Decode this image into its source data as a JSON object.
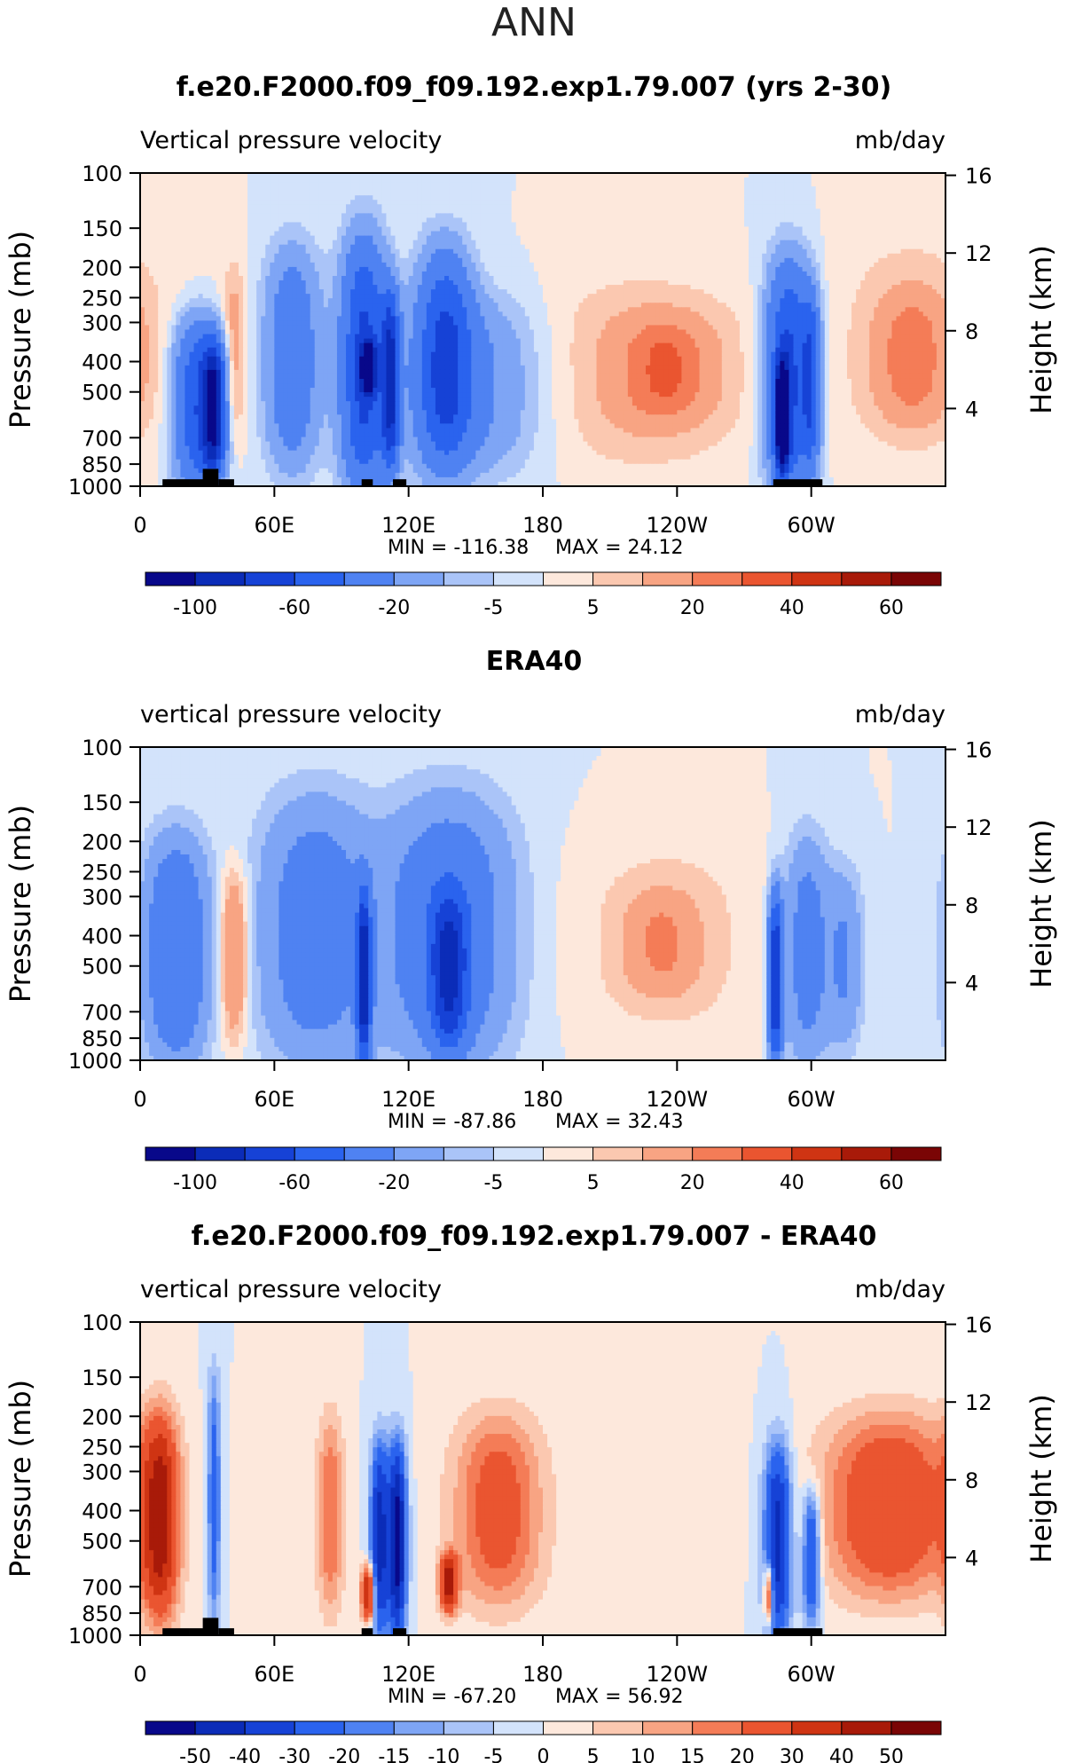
{
  "page_title": "ANN",
  "chart_data": [
    {
      "type": "heatmap",
      "title": "f.e20.F2000.f09_f09.192.exp1.79.007 (yrs 2-30)",
      "variable_label": "Vertical pressure velocity",
      "units_label": "mb/day",
      "ylabel": "Pressure (mb)",
      "y2label": "Height (km)",
      "x_ticks": [
        "0",
        "60E",
        "120E",
        "180",
        "120W",
        "60W"
      ],
      "x_tick_values": [
        0,
        60,
        120,
        180,
        240,
        300
      ],
      "xlim": [
        0,
        360
      ],
      "y_ticks": [
        "100",
        "150",
        "200",
        "250",
        "300",
        "400",
        "500",
        "700",
        "850",
        "1000"
      ],
      "y_tick_values": [
        100,
        150,
        200,
        250,
        300,
        400,
        500,
        700,
        850,
        1000
      ],
      "ylim": [
        1000,
        100
      ],
      "y_log_scale": true,
      "y2_ticks": [
        "16",
        "12",
        "8",
        "4"
      ],
      "y2_tick_values": [
        16,
        12,
        8,
        4
      ],
      "min_label": "MIN = -116.38",
      "max_label": "MAX = 24.12",
      "colorbar_labels": [
        "-100",
        "-60",
        "-20",
        "-5",
        "5",
        "20",
        "40",
        "60"
      ],
      "colorbar_levels": [
        -100,
        -80,
        -60,
        -40,
        -20,
        -10,
        -5,
        0,
        5,
        10,
        20,
        30,
        40,
        50,
        60
      ],
      "colorbar_label_positions": [
        1,
        3,
        5,
        7,
        9,
        11,
        13,
        15
      ],
      "features": [
        {
          "lon": 25,
          "plo": 300,
          "phi": 1000,
          "w": 10,
          "v": -55
        },
        {
          "lon": 33,
          "plo": 350,
          "phi": 900,
          "w": 5,
          "v": -90
        },
        {
          "lon": 42,
          "plo": 200,
          "phi": 700,
          "w": 5,
          "v": 14
        },
        {
          "lon": 68,
          "plo": 180,
          "phi": 850,
          "w": 12,
          "v": -35
        },
        {
          "lon": 100,
          "plo": 170,
          "phi": 1000,
          "w": 10,
          "v": -65
        },
        {
          "lon": 102,
          "plo": 350,
          "phi": 500,
          "w": 3,
          "v": -100
        },
        {
          "lon": 112,
          "plo": 250,
          "phi": 850,
          "w": 4,
          "v": -75
        },
        {
          "lon": 136,
          "plo": 180,
          "phi": 850,
          "w": 12,
          "v": -55
        },
        {
          "lon": 150,
          "plo": 250,
          "phi": 900,
          "w": 30,
          "v": -22
        },
        {
          "lon": 225,
          "plo": 220,
          "phi": 850,
          "w": 48,
          "v": 12
        },
        {
          "lon": 235,
          "plo": 300,
          "phi": 600,
          "w": 18,
          "v": 22
        },
        {
          "lon": 290,
          "plo": 200,
          "phi": 1000,
          "w": 10,
          "v": -65
        },
        {
          "lon": 287,
          "plo": 400,
          "phi": 900,
          "w": 3,
          "v": -110
        },
        {
          "lon": 300,
          "plo": 250,
          "phi": 850,
          "w": 4,
          "v": -45
        },
        {
          "lon": 345,
          "plo": 250,
          "phi": 600,
          "w": 15,
          "v": 20
        },
        {
          "lon": 345,
          "plo": 150,
          "phi": 850,
          "w": 35,
          "v": 8
        }
      ],
      "topography": [
        [
          10,
          22,
          1000,
          950
        ],
        [
          22,
          30,
          1000,
          950
        ],
        [
          28,
          35,
          1000,
          880
        ],
        [
          35,
          42,
          1000,
          950
        ],
        [
          99,
          104,
          1000,
          950
        ],
        [
          113,
          119,
          1000,
          950
        ],
        [
          283,
          305,
          1000,
          950
        ]
      ]
    },
    {
      "type": "heatmap",
      "title": "ERA40",
      "variable_label": "vertical pressure velocity",
      "units_label": "mb/day",
      "ylabel": "Pressure (mb)",
      "y2label": "Height (km)",
      "x_ticks": [
        "0",
        "60E",
        "120E",
        "180",
        "120W",
        "60W"
      ],
      "x_tick_values": [
        0,
        60,
        120,
        180,
        240,
        300
      ],
      "xlim": [
        0,
        360
      ],
      "y_ticks": [
        "100",
        "150",
        "200",
        "250",
        "300",
        "400",
        "500",
        "700",
        "850",
        "1000"
      ],
      "y_tick_values": [
        100,
        150,
        200,
        250,
        300,
        400,
        500,
        700,
        850,
        1000
      ],
      "ylim": [
        1000,
        100
      ],
      "y_log_scale": true,
      "y2_ticks": [
        "16",
        "12",
        "8",
        "4"
      ],
      "y2_tick_values": [
        16,
        12,
        8,
        4
      ],
      "min_label": "MIN = -87.86",
      "max_label": "MAX = 32.43",
      "colorbar_labels": [
        "-100",
        "-60",
        "-20",
        "-5",
        "5",
        "20",
        "40",
        "60"
      ],
      "colorbar_levels": [
        -100,
        -80,
        -60,
        -40,
        -20,
        -10,
        -5,
        0,
        5,
        10,
        20,
        30,
        40,
        50,
        60
      ],
      "colorbar_label_positions": [
        1,
        3,
        5,
        7,
        9,
        11,
        13,
        15
      ],
      "features": [
        {
          "lon": 16,
          "plo": 200,
          "phi": 1000,
          "w": 14,
          "v": -40
        },
        {
          "lon": 42,
          "plo": 250,
          "phi": 850,
          "w": 6,
          "v": 25
        },
        {
          "lon": 78,
          "plo": 150,
          "phi": 1000,
          "w": 25,
          "v": -30
        },
        {
          "lon": 100,
          "plo": 300,
          "phi": 1000,
          "w": 3,
          "v": -85
        },
        {
          "lon": 138,
          "plo": 150,
          "phi": 1000,
          "w": 28,
          "v": -35
        },
        {
          "lon": 138,
          "plo": 300,
          "phi": 900,
          "w": 8,
          "v": -60
        },
        {
          "lon": 235,
          "plo": 200,
          "phi": 850,
          "w": 40,
          "v": 8
        },
        {
          "lon": 233,
          "plo": 300,
          "phi": 600,
          "w": 15,
          "v": 15
        },
        {
          "lon": 284,
          "plo": 300,
          "phi": 1000,
          "w": 3,
          "v": -80
        },
        {
          "lon": 298,
          "plo": 200,
          "phi": 1000,
          "w": 10,
          "v": -28
        },
        {
          "lon": 315,
          "plo": 250,
          "phi": 900,
          "w": 8,
          "v": -20
        }
      ],
      "topography": []
    },
    {
      "type": "heatmap",
      "title": "f.e20.F2000.f09_f09.192.exp1.79.007 - ERA40",
      "variable_label": "vertical pressure velocity",
      "units_label": "mb/day",
      "ylabel": "Pressure (mb)",
      "y2label": "Height (km)",
      "x_ticks": [
        "0",
        "60E",
        "120E",
        "180",
        "120W",
        "60W"
      ],
      "x_tick_values": [
        0,
        60,
        120,
        180,
        240,
        300
      ],
      "xlim": [
        0,
        360
      ],
      "y_ticks": [
        "100",
        "150",
        "200",
        "250",
        "300",
        "400",
        "500",
        "700",
        "850",
        "1000"
      ],
      "y_tick_values": [
        100,
        150,
        200,
        250,
        300,
        400,
        500,
        700,
        850,
        1000
      ],
      "ylim": [
        1000,
        100
      ],
      "y_log_scale": true,
      "y2_ticks": [
        "16",
        "12",
        "8",
        "4"
      ],
      "y2_tick_values": [
        16,
        12,
        8,
        4
      ],
      "min_label": "MIN = -67.20",
      "max_label": "MAX = 56.92",
      "colorbar_labels": [
        "-50",
        "-40",
        "-30",
        "-20",
        "-15",
        "-10",
        "-5",
        "0",
        "5",
        "10",
        "15",
        "20",
        "30",
        "40",
        "50"
      ],
      "colorbar_levels": [
        -50,
        -40,
        -30,
        -20,
        -15,
        -10,
        -5,
        0,
        5,
        10,
        15,
        20,
        30,
        40,
        50
      ],
      "colorbar_label_positions": [
        1,
        2,
        3,
        4,
        5,
        6,
        7,
        8,
        9,
        10,
        11,
        12,
        13,
        14,
        15
      ],
      "features": [
        {
          "lon": 9,
          "plo": 200,
          "phi": 900,
          "w": 8,
          "v": 40
        },
        {
          "lon": 33,
          "plo": 150,
          "phi": 900,
          "w": 3,
          "v": -25
        },
        {
          "lon": 85,
          "plo": 200,
          "phi": 850,
          "w": 6,
          "v": 20
        },
        {
          "lon": 102,
          "plo": 600,
          "phi": 900,
          "w": 3,
          "v": 45
        },
        {
          "lon": 107,
          "plo": 250,
          "phi": 1000,
          "w": 4,
          "v": -45
        },
        {
          "lon": 115,
          "plo": 250,
          "phi": 1000,
          "w": 4,
          "v": -55
        },
        {
          "lon": 138,
          "plo": 550,
          "phi": 850,
          "w": 4,
          "v": 40
        },
        {
          "lon": 160,
          "plo": 200,
          "phi": 800,
          "w": 20,
          "v": 25
        },
        {
          "lon": 285,
          "plo": 250,
          "phi": 1000,
          "w": 6,
          "v": -45
        },
        {
          "lon": 281,
          "plo": 600,
          "phi": 900,
          "w": 2,
          "v": 40
        },
        {
          "lon": 300,
          "plo": 350,
          "phi": 900,
          "w": 4,
          "v": -35
        },
        {
          "lon": 335,
          "plo": 200,
          "phi": 750,
          "w": 30,
          "v": 30
        }
      ],
      "topography": [
        [
          10,
          22,
          1000,
          950
        ],
        [
          22,
          30,
          1000,
          950
        ],
        [
          28,
          35,
          1000,
          880
        ],
        [
          35,
          42,
          1000,
          950
        ],
        [
          99,
          104,
          1000,
          950
        ],
        [
          113,
          119,
          1000,
          950
        ],
        [
          283,
          305,
          1000,
          950
        ]
      ]
    }
  ],
  "colors": {
    "palette": [
      "#08088a",
      "#0b2cb8",
      "#1642d6",
      "#2a63ee",
      "#4f82f2",
      "#7ea5f5",
      "#aac4f8",
      "#d3e3fb",
      "#fde8dc",
      "#fbc8b0",
      "#f8a483",
      "#f47c57",
      "#ea5530",
      "#cf3413",
      "#a81a09",
      "#7a0505"
    ]
  }
}
